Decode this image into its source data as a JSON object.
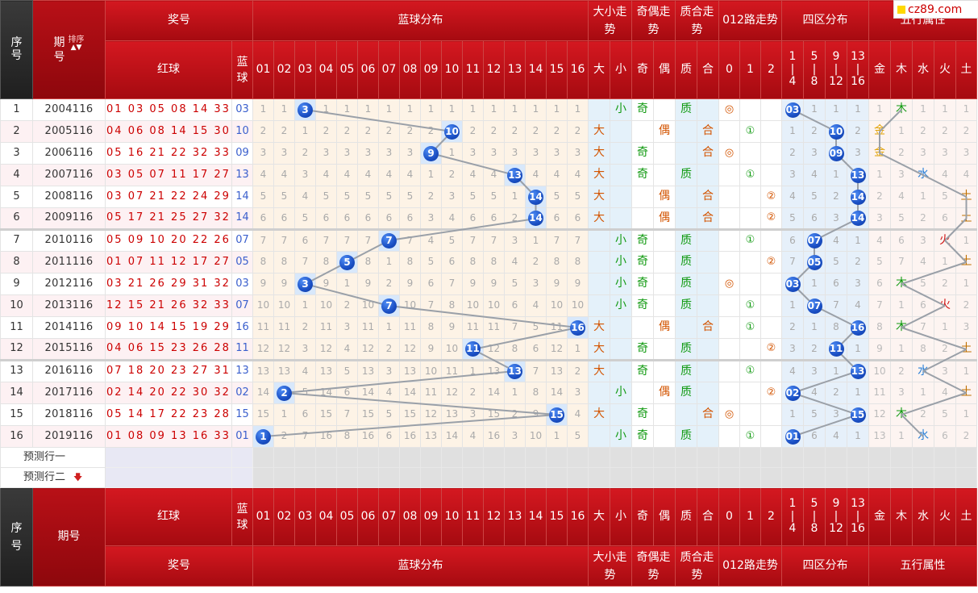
{
  "brand": "cz89.com",
  "headers": {
    "index": "序号",
    "qi": "期号",
    "sort": "排序",
    "sort_arrows": "▲▼",
    "prize": "奖号",
    "red": "红球",
    "blue": "蓝球",
    "blue_dist": "蓝球分布",
    "big_small": "大小走势",
    "odd_even": "奇偶走势",
    "prime_comp": "质合走势",
    "route": "012路走势",
    "quad": "四区分布",
    "wuxing": "五行属性",
    "sub_big": "大",
    "sub_small": "小",
    "sub_odd": "奇",
    "sub_even": "偶",
    "sub_prime": "质",
    "sub_comp": "合",
    "sub_r0": "0",
    "sub_r1": "1",
    "sub_r2": "2",
    "quads": [
      [
        "1",
        "4"
      ],
      [
        "5",
        "8"
      ],
      [
        "9",
        "12"
      ],
      [
        "13",
        "16"
      ]
    ],
    "wuxing_cols": [
      "金",
      "木",
      "水",
      "火",
      "土"
    ],
    "numbers": [
      "01",
      "02",
      "03",
      "04",
      "05",
      "06",
      "07",
      "08",
      "09",
      "10",
      "11",
      "12",
      "13",
      "14",
      "15",
      "16"
    ]
  },
  "predict": [
    "预测行一",
    "预测行二"
  ],
  "predict_arrow": "🡇",
  "rows": [
    {
      "idx": "1",
      "qi": "2004116",
      "red": "01 03 05 08 14 33",
      "blue": "03",
      "ball": 3,
      "dist": [
        "1",
        "1",
        "",
        "1",
        "1",
        "1",
        "1",
        "1",
        "1",
        "1",
        "1",
        "1",
        "1",
        "1",
        "1",
        "1"
      ],
      "bs": "小",
      "oe": "奇",
      "pc": "质",
      "route": 0,
      "route_lbl": "◎",
      "quad": 0,
      "quad_lbl": "03",
      "quad_miss": [
        "",
        "1",
        "1",
        "1"
      ],
      "wx": 1,
      "wx_lbl": "木",
      "wx_miss": [
        "1",
        "",
        "1",
        "1",
        "1"
      ]
    },
    {
      "idx": "2",
      "qi": "2005116",
      "red": "04 06 08 14 15 30",
      "blue": "10",
      "ball": 10,
      "dist": [
        "2",
        "2",
        "1",
        "2",
        "2",
        "2",
        "2",
        "2",
        "2",
        "",
        "2",
        "2",
        "2",
        "2",
        "2",
        "2"
      ],
      "bs": "大",
      "oe": "偶",
      "pc": "合",
      "route": 1,
      "route_lbl": "①",
      "quad": 2,
      "quad_lbl": "10",
      "quad_miss": [
        "1",
        "2",
        "",
        "2"
      ],
      "wx": 0,
      "wx_lbl": "金",
      "wx_miss": [
        "",
        "1",
        "2",
        "2",
        "2"
      ]
    },
    {
      "idx": "3",
      "qi": "2006116",
      "red": "05 16 21 22 32 33",
      "blue": "09",
      "ball": 9,
      "dist": [
        "3",
        "3",
        "2",
        "3",
        "3",
        "3",
        "3",
        "3",
        "",
        "1",
        "3",
        "3",
        "3",
        "3",
        "3",
        "3"
      ],
      "bs": "大",
      "oe": "奇",
      "pc": "合",
      "route": 0,
      "route_lbl": "◎",
      "quad": 2,
      "quad_lbl": "09",
      "quad_miss": [
        "2",
        "3",
        "",
        "3"
      ],
      "wx": 0,
      "wx_lbl": "金",
      "wx_miss": [
        "",
        "2",
        "3",
        "3",
        "3"
      ]
    },
    {
      "idx": "4",
      "qi": "2007116",
      "red": "03 05 07 11 17 27",
      "blue": "13",
      "ball": 13,
      "dist": [
        "4",
        "4",
        "3",
        "4",
        "4",
        "4",
        "4",
        "4",
        "1",
        "2",
        "4",
        "4",
        "",
        "4",
        "4",
        "4"
      ],
      "bs": "大",
      "oe": "奇",
      "pc": "质",
      "route": 1,
      "route_lbl": "①",
      "quad": 3,
      "quad_lbl": "13",
      "quad_miss": [
        "3",
        "4",
        "1",
        ""
      ],
      "wx": 2,
      "wx_lbl": "水",
      "wx_miss": [
        "1",
        "3",
        "",
        "4",
        "4"
      ]
    },
    {
      "idx": "5",
      "qi": "2008116",
      "red": "03 07 21 22 24 29",
      "blue": "14",
      "ball": 14,
      "dist": [
        "5",
        "5",
        "4",
        "5",
        "5",
        "5",
        "5",
        "5",
        "2",
        "3",
        "5",
        "5",
        "1",
        "",
        "5",
        "5"
      ],
      "bs": "大",
      "oe": "偶",
      "pc": "合",
      "route": 2,
      "route_lbl": "②",
      "quad": 3,
      "quad_lbl": "14",
      "quad_miss": [
        "4",
        "5",
        "2",
        ""
      ],
      "wx": 4,
      "wx_lbl": "土",
      "wx_miss": [
        "2",
        "4",
        "1",
        "5",
        ""
      ]
    },
    {
      "idx": "6",
      "qi": "2009116",
      "red": "05 17 21 25 27 32",
      "blue": "14",
      "ball": 14,
      "dist": [
        "6",
        "6",
        "5",
        "6",
        "6",
        "6",
        "6",
        "6",
        "3",
        "4",
        "6",
        "6",
        "2",
        "",
        "6",
        "6"
      ],
      "bs": "大",
      "oe": "偶",
      "pc": "合",
      "route": 2,
      "route_lbl": "②",
      "quad": 3,
      "quad_lbl": "14",
      "quad_miss": [
        "5",
        "6",
        "3",
        ""
      ],
      "wx": 4,
      "wx_lbl": "土",
      "wx_miss": [
        "3",
        "5",
        "2",
        "6",
        ""
      ]
    },
    {
      "idx": "7",
      "qi": "2010116",
      "red": "05 09 10 20 22 26",
      "blue": "07",
      "ball": 7,
      "dist": [
        "7",
        "7",
        "6",
        "7",
        "7",
        "7",
        "",
        "7",
        "4",
        "5",
        "7",
        "7",
        "3",
        "1",
        "7",
        "7"
      ],
      "bs": "小",
      "oe": "奇",
      "pc": "质",
      "route": 1,
      "route_lbl": "①",
      "quad": 1,
      "quad_lbl": "07",
      "quad_miss": [
        "6",
        "",
        "4",
        "1"
      ],
      "wx": 3,
      "wx_lbl": "火",
      "wx_miss": [
        "4",
        "6",
        "3",
        "",
        "1"
      ]
    },
    {
      "idx": "8",
      "qi": "2011116",
      "red": "01 07 11 12 17 27",
      "blue": "05",
      "ball": 5,
      "dist": [
        "8",
        "8",
        "7",
        "8",
        "",
        "8",
        "1",
        "8",
        "5",
        "6",
        "8",
        "8",
        "4",
        "2",
        "8",
        "8"
      ],
      "bs": "小",
      "oe": "奇",
      "pc": "质",
      "route": 2,
      "route_lbl": "②",
      "quad": 1,
      "quad_lbl": "05",
      "quad_miss": [
        "7",
        "",
        "5",
        "2"
      ],
      "wx": 4,
      "wx_lbl": "土",
      "wx_miss": [
        "5",
        "7",
        "4",
        "1",
        ""
      ]
    },
    {
      "idx": "9",
      "qi": "2012116",
      "red": "03 21 26 29 31 32",
      "blue": "03",
      "ball": 3,
      "dist": [
        "9",
        "9",
        "",
        "9",
        "1",
        "9",
        "2",
        "9",
        "6",
        "7",
        "9",
        "9",
        "5",
        "3",
        "9",
        "9"
      ],
      "bs": "小",
      "oe": "奇",
      "pc": "质",
      "route": 0,
      "route_lbl": "◎",
      "quad": 0,
      "quad_lbl": "03",
      "quad_miss": [
        "",
        "1",
        "6",
        "3"
      ],
      "wx": 1,
      "wx_lbl": "木",
      "wx_miss": [
        "6",
        "",
        "5",
        "2",
        "1"
      ]
    },
    {
      "idx": "10",
      "qi": "2013116",
      "red": "12 15 21 26 32 33",
      "blue": "07",
      "ball": 7,
      "dist": [
        "10",
        "10",
        "1",
        "10",
        "2",
        "10",
        "",
        "10",
        "7",
        "8",
        "10",
        "10",
        "6",
        "4",
        "10",
        "10"
      ],
      "bs": "小",
      "oe": "奇",
      "pc": "质",
      "route": 1,
      "route_lbl": "①",
      "quad": 1,
      "quad_lbl": "07",
      "quad_miss": [
        "1",
        "",
        "7",
        "4"
      ],
      "wx": 3,
      "wx_lbl": "火",
      "wx_miss": [
        "7",
        "1",
        "6",
        "",
        "2"
      ]
    },
    {
      "idx": "11",
      "qi": "2014116",
      "red": "09 10 14 15 19 29",
      "blue": "16",
      "ball": 16,
      "dist": [
        "11",
        "11",
        "2",
        "11",
        "3",
        "11",
        "1",
        "11",
        "8",
        "9",
        "11",
        "11",
        "7",
        "5",
        "11",
        ""
      ],
      "bs": "大",
      "oe": "偶",
      "pc": "合",
      "route": 1,
      "route_lbl": "①",
      "quad": 3,
      "quad_lbl": "16",
      "quad_miss": [
        "2",
        "1",
        "8",
        ""
      ],
      "wx": 1,
      "wx_lbl": "木",
      "wx_miss": [
        "8",
        "",
        "7",
        "1",
        "3"
      ]
    },
    {
      "idx": "12",
      "qi": "2015116",
      "red": "04 06 15 23 26 28",
      "blue": "11",
      "ball": 11,
      "dist": [
        "12",
        "12",
        "3",
        "12",
        "4",
        "12",
        "2",
        "12",
        "9",
        "10",
        "",
        "12",
        "8",
        "6",
        "12",
        "1"
      ],
      "bs": "大",
      "oe": "奇",
      "pc": "质",
      "route": 2,
      "route_lbl": "②",
      "quad": 2,
      "quad_lbl": "11",
      "quad_miss": [
        "3",
        "2",
        "",
        "1"
      ],
      "wx": 4,
      "wx_lbl": "土",
      "wx_miss": [
        "9",
        "1",
        "8",
        "2",
        ""
      ]
    },
    {
      "idx": "13",
      "qi": "2016116",
      "red": "07 18 20 23 27 31",
      "blue": "13",
      "ball": 13,
      "dist": [
        "13",
        "13",
        "4",
        "13",
        "5",
        "13",
        "3",
        "13",
        "10",
        "11",
        "1",
        "13",
        "",
        "7",
        "13",
        "2"
      ],
      "bs": "大",
      "oe": "奇",
      "pc": "质",
      "route": 1,
      "route_lbl": "①",
      "quad": 3,
      "quad_lbl": "13",
      "quad_miss": [
        "4",
        "3",
        "1",
        ""
      ],
      "wx": 2,
      "wx_lbl": "水",
      "wx_miss": [
        "10",
        "2",
        "",
        "3",
        "1"
      ]
    },
    {
      "idx": "14",
      "qi": "2017116",
      "red": "02 14 20 22 30 32",
      "blue": "02",
      "ball": 2,
      "dist": [
        "14",
        "",
        "5",
        "14",
        "6",
        "14",
        "4",
        "14",
        "11",
        "12",
        "2",
        "14",
        "1",
        "8",
        "14",
        "3"
      ],
      "bs": "小",
      "oe": "偶",
      "pc": "质",
      "route": 2,
      "route_lbl": "②",
      "quad": 0,
      "quad_lbl": "02",
      "quad_miss": [
        "",
        "4",
        "2",
        "1"
      ],
      "wx": 4,
      "wx_lbl": "土",
      "wx_miss": [
        "11",
        "3",
        "1",
        "4",
        ""
      ]
    },
    {
      "idx": "15",
      "qi": "2018116",
      "red": "05 14 17 22 23 28",
      "blue": "15",
      "ball": 15,
      "dist": [
        "15",
        "1",
        "6",
        "15",
        "7",
        "15",
        "5",
        "15",
        "12",
        "13",
        "3",
        "15",
        "2",
        "9",
        "",
        "4"
      ],
      "bs": "大",
      "oe": "奇",
      "pc": "合",
      "route": 0,
      "route_lbl": "◎",
      "quad": 3,
      "quad_lbl": "15",
      "quad_miss": [
        "1",
        "5",
        "3",
        ""
      ],
      "wx": 1,
      "wx_lbl": "木",
      "wx_miss": [
        "12",
        "",
        "2",
        "5",
        "1"
      ]
    },
    {
      "idx": "16",
      "qi": "2019116",
      "red": "01 08 09 13 16 33",
      "blue": "01",
      "ball": 1,
      "dist": [
        "",
        "2",
        "7",
        "16",
        "8",
        "16",
        "6",
        "16",
        "13",
        "14",
        "4",
        "16",
        "3",
        "10",
        "1",
        "5"
      ],
      "bs": "小",
      "oe": "奇",
      "pc": "质",
      "route": 1,
      "route_lbl": "①",
      "quad": 0,
      "quad_lbl": "01",
      "quad_miss": [
        "",
        "6",
        "4",
        "1"
      ],
      "wx": 2,
      "wx_lbl": "水",
      "wx_miss": [
        "13",
        "1",
        "",
        "6",
        "2"
      ]
    }
  ]
}
